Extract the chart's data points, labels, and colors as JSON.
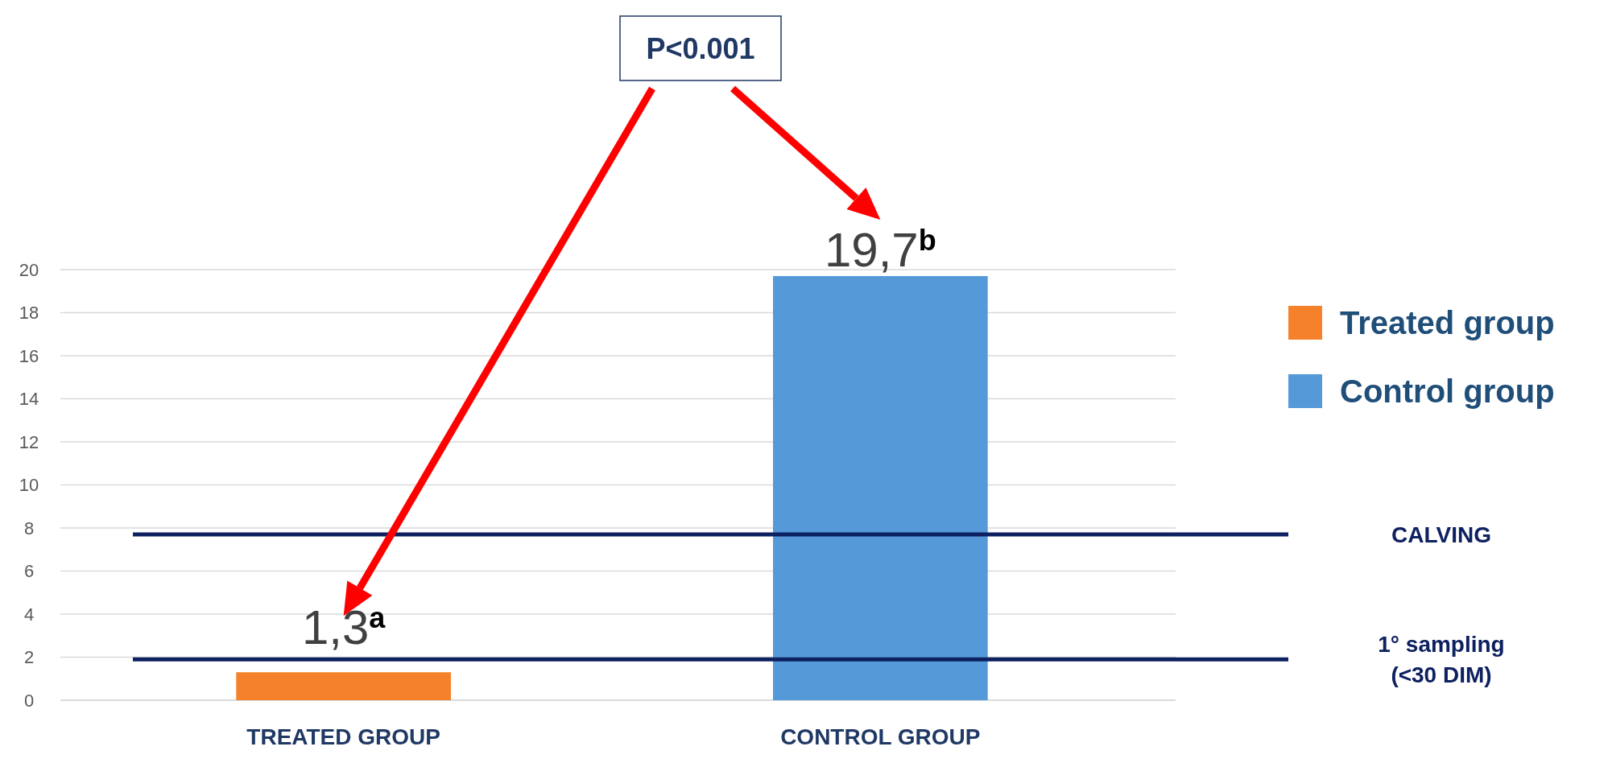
{
  "chart_data": {
    "type": "bar",
    "categories": [
      "TREATED GROUP",
      "CONTROL GROUP"
    ],
    "series": [
      {
        "name": "Treated group",
        "color": "#f5822a",
        "values": [
          1.3,
          null
        ],
        "value_labels": [
          "1,3$^{a}$",
          null
        ]
      },
      {
        "name": "Control group",
        "color": "#5599d9",
        "values": [
          null,
          19.7
        ],
        "value_labels": [
          null,
          "19,7$^{b}$"
        ]
      }
    ],
    "ylim": [
      0,
      20
    ],
    "yticks": [
      0,
      2,
      4,
      6,
      8,
      10,
      12,
      14,
      16,
      18,
      20
    ],
    "grid": "y",
    "legend": "right",
    "ref_lines": [
      {
        "axis": "y",
        "value": 7.7,
        "label": "CALVING",
        "color": "#0d2060"
      },
      {
        "axis": "y",
        "value": 1.9,
        "label": "1° sampling (<30 DIM)",
        "color": "#0d2060"
      }
    ],
    "annotations": [
      "P<0.001"
    ]
  }
}
